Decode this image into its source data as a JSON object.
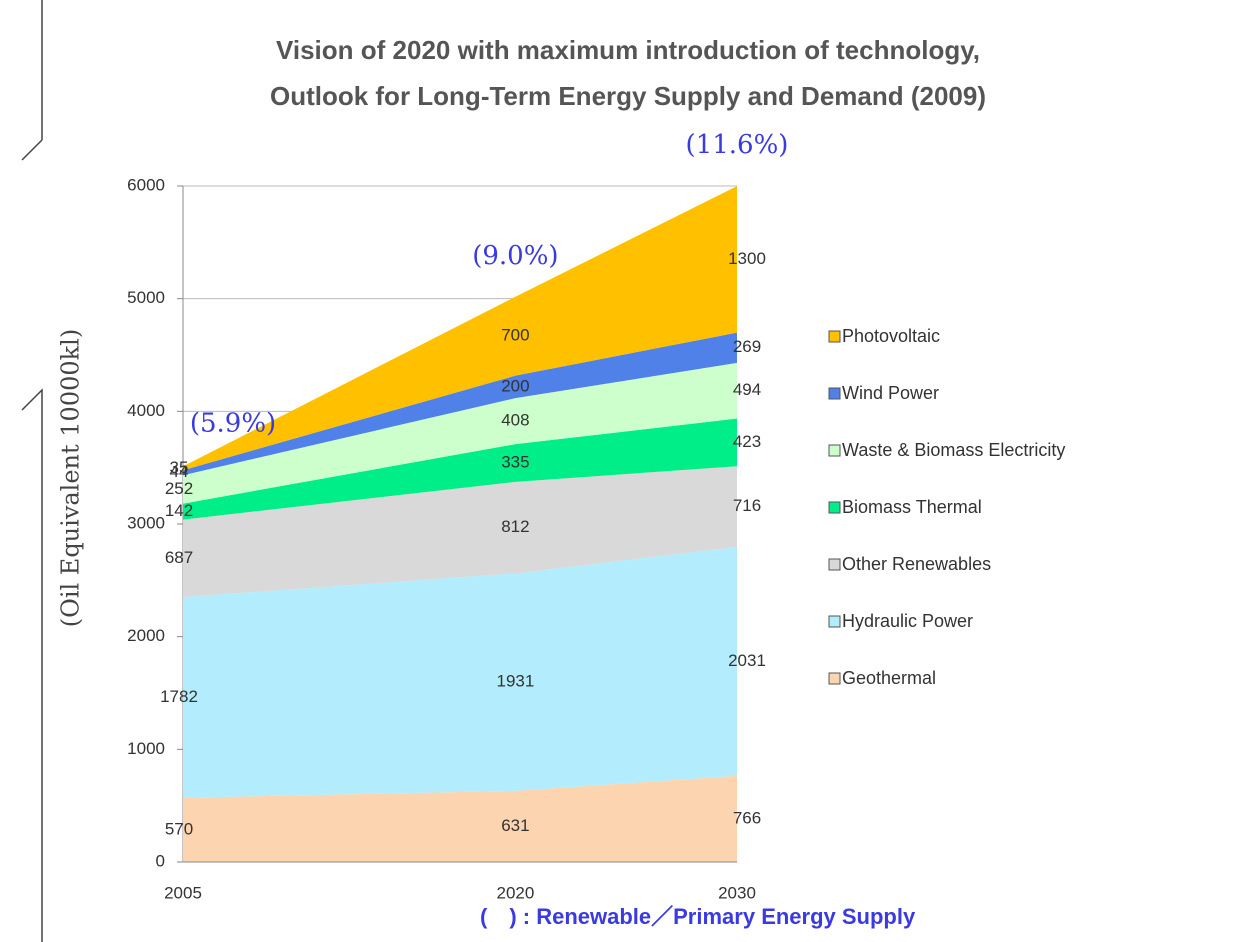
{
  "chart_data": {
    "type": "area",
    "stacked": true,
    "title": [
      "Vision of 2020 with maximum introduction of technology,",
      "Outlook for Long-Term Energy Supply and Demand (2009)"
    ],
    "y_label": "(Oil Equivalent 10000kl)",
    "x": [
      2005,
      2020,
      2030
    ],
    "xlim": [
      2005,
      2030
    ],
    "xticks": [
      2005,
      2020,
      2030
    ],
    "ylim": [
      0,
      6000
    ],
    "yticks": [
      0,
      1000,
      2000,
      3000,
      4000,
      5000,
      6000
    ],
    "grid": true,
    "legend": "right",
    "series": [
      {
        "name": "Geothermal",
        "color": "#fcd5b0",
        "values": [
          570,
          631,
          766
        ]
      },
      {
        "name": "Hydraulic Power",
        "color": "#b3ecfc",
        "values": [
          1782,
          1931,
          2031
        ]
      },
      {
        "name": "Other Renewables",
        "color": "#d9d9d9",
        "values": [
          687,
          812,
          716
        ]
      },
      {
        "name": "Biomass Thermal",
        "color": "#00ee88",
        "values": [
          142,
          335,
          423
        ]
      },
      {
        "name": "Waste & Biomass Electricity",
        "color": "#ccffcc",
        "values": [
          252,
          408,
          494
        ]
      },
      {
        "name": "Wind Power",
        "color": "#4f81e8",
        "values": [
          44,
          200,
          269
        ]
      },
      {
        "name": "Photovoltaic",
        "color": "#ffc000",
        "values": [
          35,
          700,
          1300
        ]
      }
    ],
    "share_labels": [
      "(5.9%)",
      "(9.0%)",
      "(11.6%)"
    ],
    "footnote": "(　) : Renewable／Primary Energy Supply"
  }
}
